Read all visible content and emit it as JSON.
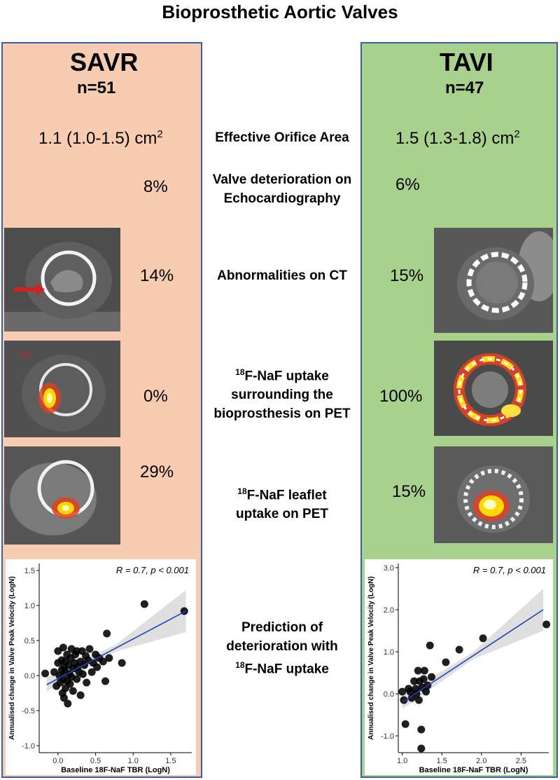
{
  "title": "Bioprosthetic Aortic Valves",
  "savr": {
    "name": "SAVR",
    "n": "n=51",
    "eoa_value": "1.1 (1.0-1.5) cm",
    "eoa_sup": "2",
    "echo": "8%",
    "ct": "14%",
    "pet_surround": "0%",
    "pet_leaflet": "29%"
  },
  "tavi": {
    "name": "TAVI",
    "n": "n=47",
    "eoa_value": "1.5 (1.3-1.8) cm",
    "eoa_sup": "2",
    "echo": "6%",
    "ct": "15%",
    "pet_surround": "100%",
    "pet_leaflet": "15%"
  },
  "labels": {
    "eoa": "Effective Orifice Area",
    "echo_line1": "Valve deterioration on",
    "echo_line2": "Echocardiography",
    "ct": "Abnormalities on CT",
    "pet1_sup": "18",
    "pet1_line1": "F-NaF uptake",
    "pet1_line2": "surrounding the",
    "pet1_line3": "bioprosthesis on PET",
    "pet2_sup": "18",
    "pet2_line1": "F-NaF leaflet",
    "pet2_line2": "uptake on PET",
    "pred_line1": "Prediction of",
    "pred_line2": "deterioration with",
    "pred_sup": "18",
    "pred_line3": "F-NaF uptake"
  },
  "chart_data": [
    {
      "type": "scatter",
      "panel": "SAVR",
      "annotation": "R = 0.7, p < 0.001",
      "xlabel": "Baseline 18F-NaF TBR (LogN)",
      "ylabel": "Annualised change in Valve Peak Velocity (LogN)",
      "xlim": [
        -0.25,
        1.78
      ],
      "ylim": [
        -1.1,
        1.6
      ],
      "xticks": [
        "0.0",
        "0.5",
        "1.0",
        "1.5"
      ],
      "yticks": [
        "-1.0",
        "-0.5",
        "0.0",
        "0.5",
        "1.0",
        "1.5"
      ],
      "xtick_values": [
        0.0,
        0.5,
        1.0,
        1.5
      ],
      "ytick_values": [
        -1.0,
        -0.5,
        0.0,
        0.5,
        1.0,
        1.5
      ],
      "fit": {
        "x": [
          -0.15,
          1.7
        ],
        "y": [
          -0.13,
          0.92
        ]
      },
      "points": [
        [
          -0.17,
          0.03
        ],
        [
          -0.05,
          0.05
        ],
        [
          -0.02,
          -0.15
        ],
        [
          0.0,
          0.35
        ],
        [
          0.0,
          0.18
        ],
        [
          0.02,
          0.0
        ],
        [
          0.03,
          -0.1
        ],
        [
          0.05,
          0.22
        ],
        [
          0.05,
          0.08
        ],
        [
          0.06,
          -0.25
        ],
        [
          0.07,
          0.4
        ],
        [
          0.07,
          -0.05
        ],
        [
          0.08,
          0.12
        ],
        [
          0.08,
          -0.32
        ],
        [
          0.1,
          0.2
        ],
        [
          0.1,
          0.05
        ],
        [
          0.1,
          -0.18
        ],
        [
          0.12,
          0.3
        ],
        [
          0.12,
          -0.08
        ],
        [
          0.13,
          -0.4
        ],
        [
          0.14,
          0.15
        ],
        [
          0.15,
          0.02
        ],
        [
          0.16,
          -0.12
        ],
        [
          0.17,
          0.25
        ],
        [
          0.18,
          0.38
        ],
        [
          0.18,
          -0.02
        ],
        [
          0.2,
          0.1
        ],
        [
          0.2,
          -0.22
        ],
        [
          0.22,
          0.18
        ],
        [
          0.23,
          0.3
        ],
        [
          0.25,
          -0.05
        ],
        [
          0.26,
          0.12
        ],
        [
          0.28,
          0.05
        ],
        [
          0.3,
          0.2
        ],
        [
          0.3,
          -0.28
        ],
        [
          0.32,
          0.35
        ],
        [
          0.33,
          0.02
        ],
        [
          0.35,
          0.15
        ],
        [
          0.37,
          0.28
        ],
        [
          0.38,
          -0.1
        ],
        [
          0.4,
          0.22
        ],
        [
          0.42,
          0.38
        ],
        [
          0.45,
          0.05
        ],
        [
          0.47,
          0.18
        ],
        [
          0.5,
          0.3
        ],
        [
          0.52,
          0.12
        ],
        [
          0.55,
          0.25
        ],
        [
          0.6,
          0.2
        ],
        [
          0.63,
          -0.08
        ],
        [
          0.65,
          0.6
        ],
        [
          0.68,
          0.25
        ],
        [
          0.85,
          0.18
        ],
        [
          1.15,
          1.02
        ],
        [
          1.68,
          0.92
        ],
        [
          0.25,
          0.35
        ]
      ]
    },
    {
      "type": "scatter",
      "panel": "TAVI",
      "annotation": "R = 0.7, p < 0.001",
      "xlabel": "Baseline 18F-NaF TBR (LogN)",
      "ylabel": "Annualised change in Valve Peak Velocity (LogN)",
      "xlim": [
        0.95,
        2.85
      ],
      "ylim": [
        -1.4,
        3.1
      ],
      "xticks": [
        "1.0",
        "1.5",
        "2.0",
        "2.5"
      ],
      "yticks": [
        "-1.0",
        "0.0",
        "1.0",
        "2.0",
        "3.0"
      ],
      "xtick_values": [
        1.0,
        1.5,
        2.0,
        2.5
      ],
      "ytick_values": [
        -1.0,
        0.0,
        1.0,
        2.0,
        3.0
      ],
      "fit": {
        "x": [
          1.0,
          2.78
        ],
        "y": [
          -0.2,
          2.0
        ]
      },
      "points": [
        [
          1.0,
          0.05
        ],
        [
          1.02,
          -0.15
        ],
        [
          1.04,
          -0.72
        ],
        [
          1.08,
          0.12
        ],
        [
          1.1,
          0.05
        ],
        [
          1.12,
          -0.1
        ],
        [
          1.15,
          0.3
        ],
        [
          1.17,
          0.12
        ],
        [
          1.18,
          0.0
        ],
        [
          1.2,
          0.55
        ],
        [
          1.21,
          -0.15
        ],
        [
          1.22,
          0.3
        ],
        [
          1.24,
          -0.85
        ],
        [
          1.24,
          -1.3
        ],
        [
          1.25,
          0.15
        ],
        [
          1.27,
          0.35
        ],
        [
          1.28,
          0.55
        ],
        [
          1.3,
          0.05
        ],
        [
          1.32,
          0.2
        ],
        [
          1.35,
          1.15
        ],
        [
          1.37,
          0.4
        ],
        [
          1.55,
          0.75
        ],
        [
          1.72,
          1.05
        ],
        [
          2.02,
          1.32
        ],
        [
          2.82,
          1.65
        ]
      ]
    }
  ]
}
